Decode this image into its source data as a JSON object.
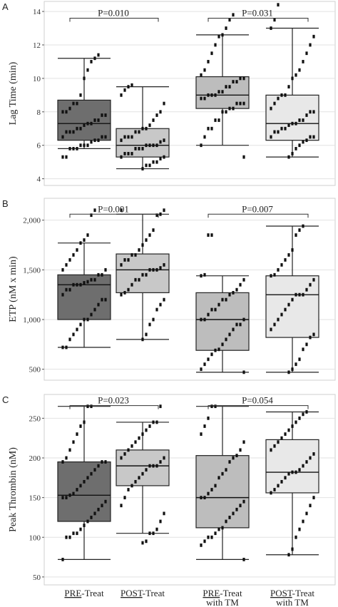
{
  "chart_data": [
    {
      "type": "box",
      "panel_label": "A",
      "ylabel": "Lag Time (min)",
      "ylim": [
        3.6,
        14.6
      ],
      "yticks": [
        4,
        6,
        8,
        10,
        12,
        14
      ],
      "ytick_labels": [
        "4",
        "6",
        "8",
        "10",
        "12",
        "14"
      ],
      "grid": true,
      "groups": [
        {
          "category": "PRE-Treat",
          "fill": "#6e6e6e",
          "min": 5.8,
          "q1": 6.3,
          "median": 7.3,
          "q3": 8.7,
          "max": 11.2,
          "points": [
            5.3,
            5.3,
            5.8,
            5.8,
            5.8,
            6.0,
            6.0,
            6.0,
            6.2,
            6.3,
            6.3,
            6.5,
            6.5,
            6.5,
            6.8,
            6.8,
            6.8,
            7.0,
            7.0,
            7.2,
            7.3,
            7.3,
            7.5,
            7.5,
            7.8,
            7.8,
            8.0,
            8.0,
            8.2,
            8.5,
            8.5,
            9.0,
            10.0,
            10.5,
            11.0,
            11.2,
            11.4
          ]
        },
        {
          "category": "POST-Treat",
          "fill": "#c8c8c8",
          "min": 4.6,
          "q1": 5.3,
          "median": 6.0,
          "q3": 7.0,
          "max": 9.5,
          "points": [
            4.6,
            4.8,
            4.8,
            5.0,
            5.0,
            5.2,
            5.3,
            5.3,
            5.5,
            5.5,
            5.5,
            5.8,
            5.8,
            5.8,
            6.0,
            6.0,
            6.0,
            6.0,
            6.2,
            6.3,
            6.3,
            6.5,
            6.5,
            6.5,
            6.8,
            6.8,
            7.0,
            7.0,
            7.2,
            7.5,
            7.8,
            8.0,
            8.5,
            9.0,
            9.3,
            9.5,
            9.6
          ]
        },
        {
          "category": "PRE-Treat with TM",
          "fill": "#bdbdbd",
          "min": 6.0,
          "q1": 8.2,
          "median": 9.0,
          "q3": 10.1,
          "max": 12.6,
          "points": [
            5.3,
            6.0,
            6.5,
            7.0,
            7.0,
            7.5,
            7.5,
            8.0,
            8.0,
            8.2,
            8.2,
            8.5,
            8.5,
            8.5,
            8.8,
            8.8,
            9.0,
            9.0,
            9.0,
            9.2,
            9.2,
            9.5,
            9.5,
            9.8,
            9.8,
            10.0,
            10.0,
            10.2,
            10.5,
            11.0,
            11.5,
            12.0,
            12.5,
            12.6,
            13.0,
            13.5,
            13.8
          ]
        },
        {
          "category": "POST-Treat with TM",
          "fill": "#e8e8e8",
          "min": 5.3,
          "q1": 6.3,
          "median": 7.3,
          "q3": 9.0,
          "max": 13.0,
          "points": [
            5.3,
            5.5,
            5.8,
            6.0,
            6.2,
            6.3,
            6.5,
            6.5,
            6.5,
            6.8,
            6.8,
            7.0,
            7.0,
            7.2,
            7.3,
            7.3,
            7.5,
            7.5,
            7.8,
            8.0,
            8.0,
            8.2,
            8.5,
            8.8,
            9.0,
            9.0,
            9.5,
            10.0,
            10.2,
            10.5,
            11.0,
            11.5,
            12.0,
            12.5,
            13.0,
            13.5,
            14.4
          ]
        }
      ],
      "comparisons": [
        {
          "from": 0,
          "to": 1,
          "label": "P=0.010",
          "y": 13.6
        },
        {
          "from": 2,
          "to": 3,
          "label": "P=0.031",
          "y": 13.6
        }
      ]
    },
    {
      "type": "box",
      "panel_label": "B",
      "ylabel": "ETP (nM x min)",
      "ylim": [
        390,
        2220
      ],
      "yticks": [
        500,
        1000,
        1500,
        2000
      ],
      "ytick_labels": [
        "500",
        "1,000",
        "1,500",
        "2,000"
      ],
      "grid": true,
      "groups": [
        {
          "category": "PRE-Treat",
          "fill": "#6e6e6e",
          "min": 720,
          "q1": 1000,
          "median": 1350,
          "q3": 1450,
          "max": 1770,
          "points": [
            720,
            720,
            800,
            850,
            900,
            950,
            1000,
            1000,
            1050,
            1100,
            1150,
            1200,
            1200,
            1250,
            1300,
            1300,
            1350,
            1350,
            1350,
            1370,
            1380,
            1400,
            1400,
            1450,
            1450,
            1500,
            1500,
            1550,
            1600,
            1650,
            1700,
            1770,
            1800,
            1850,
            2050,
            2100
          ]
        },
        {
          "category": "POST-Treat",
          "fill": "#c8c8c8",
          "min": 800,
          "q1": 1270,
          "median": 1500,
          "q3": 1660,
          "max": 2060,
          "points": [
            800,
            850,
            950,
            1000,
            1100,
            1150,
            1200,
            1250,
            1270,
            1300,
            1350,
            1400,
            1400,
            1450,
            1450,
            1500,
            1500,
            1500,
            1520,
            1550,
            1550,
            1600,
            1600,
            1650,
            1650,
            1700,
            1750,
            1800,
            1850,
            1900,
            2050,
            2060,
            2100,
            2100
          ]
        },
        {
          "category": "PRE-Treat with TM",
          "fill": "#bdbdbd",
          "min": 470,
          "q1": 690,
          "median": 1000,
          "q3": 1270,
          "max": 1440,
          "points": [
            470,
            500,
            550,
            600,
            650,
            690,
            700,
            750,
            800,
            850,
            900,
            950,
            950,
            1000,
            1000,
            1000,
            1050,
            1100,
            1100,
            1150,
            1200,
            1200,
            1250,
            1270,
            1300,
            1350,
            1400,
            1440,
            1450,
            1850,
            1850
          ]
        },
        {
          "category": "POST-Treat with TM",
          "fill": "#e8e8e8",
          "min": 470,
          "q1": 820,
          "median": 1250,
          "q3": 1440,
          "max": 1940,
          "points": [
            470,
            500,
            550,
            600,
            700,
            750,
            820,
            850,
            900,
            950,
            1000,
            1050,
            1100,
            1150,
            1200,
            1250,
            1250,
            1250,
            1300,
            1350,
            1400,
            1440,
            1450,
            1500,
            1550,
            1600,
            1650,
            1700,
            1850,
            1900,
            1940
          ]
        }
      ],
      "comparisons": [
        {
          "from": 0,
          "to": 1,
          "label": "P=0.001",
          "y": 2060
        },
        {
          "from": 2,
          "to": 3,
          "label": "P=0.007",
          "y": 2060
        }
      ]
    },
    {
      "type": "box",
      "panel_label": "C",
      "ylabel": "Peak Thrombin (nM)",
      "ylim": [
        40,
        280
      ],
      "yticks": [
        50,
        100,
        150,
        200,
        250
      ],
      "ytick_labels": [
        "50",
        "100",
        "150",
        "200",
        "250"
      ],
      "grid": true,
      "groups": [
        {
          "category": "PRE-Treat",
          "fill": "#6e6e6e",
          "min": 72,
          "q1": 120,
          "median": 153,
          "q3": 195,
          "max": 265,
          "points": [
            72,
            100,
            100,
            105,
            105,
            110,
            115,
            120,
            125,
            130,
            135,
            140,
            145,
            150,
            150,
            153,
            155,
            160,
            165,
            170,
            175,
            180,
            185,
            190,
            195,
            195,
            195,
            200,
            210,
            220,
            230,
            240,
            245,
            265,
            265
          ]
        },
        {
          "category": "POST-Treat",
          "fill": "#c8c8c8",
          "min": 105,
          "q1": 165,
          "median": 190,
          "q3": 210,
          "max": 245,
          "points": [
            93,
            95,
            105,
            105,
            110,
            120,
            130,
            140,
            150,
            160,
            165,
            170,
            175,
            180,
            185,
            190,
            190,
            190,
            195,
            200,
            200,
            205,
            210,
            215,
            220,
            225,
            230,
            235,
            240,
            245,
            245,
            265
          ]
        },
        {
          "category": "PRE-Treat with TM",
          "fill": "#bdbdbd",
          "min": 72,
          "q1": 112,
          "median": 150,
          "q3": 203,
          "max": 265,
          "points": [
            72,
            90,
            95,
            100,
            100,
            105,
            110,
            112,
            120,
            125,
            130,
            135,
            140,
            145,
            150,
            150,
            155,
            160,
            165,
            175,
            180,
            185,
            195,
            200,
            203,
            210,
            220,
            230,
            240,
            250,
            265,
            265
          ]
        },
        {
          "category": "POST-Treat with TM",
          "fill": "#e8e8e8",
          "min": 78,
          "q1": 156,
          "median": 182,
          "q3": 223,
          "max": 258,
          "points": [
            78,
            85,
            100,
            110,
            120,
            130,
            140,
            150,
            156,
            160,
            165,
            170,
            175,
            180,
            182,
            182,
            185,
            190,
            195,
            200,
            205,
            210,
            215,
            220,
            225,
            230,
            235,
            240,
            245,
            250,
            255,
            258
          ]
        }
      ],
      "comparisons": [
        {
          "from": 0,
          "to": 1,
          "label": "P=0.023",
          "y": 266
        },
        {
          "from": 2,
          "to": 3,
          "label": "P=0.054",
          "y": 266
        }
      ]
    }
  ],
  "x_axis": {
    "categories": [
      {
        "prefix": "PRE",
        "rest": "-Treat",
        "line2": ""
      },
      {
        "prefix": "POST",
        "rest": "-Treat",
        "line2": ""
      },
      {
        "prefix": "PRE",
        "rest": "-Treat",
        "line2": "with TM"
      },
      {
        "prefix": "POST",
        "rest": "-Treat",
        "line2": "with TM"
      }
    ]
  }
}
